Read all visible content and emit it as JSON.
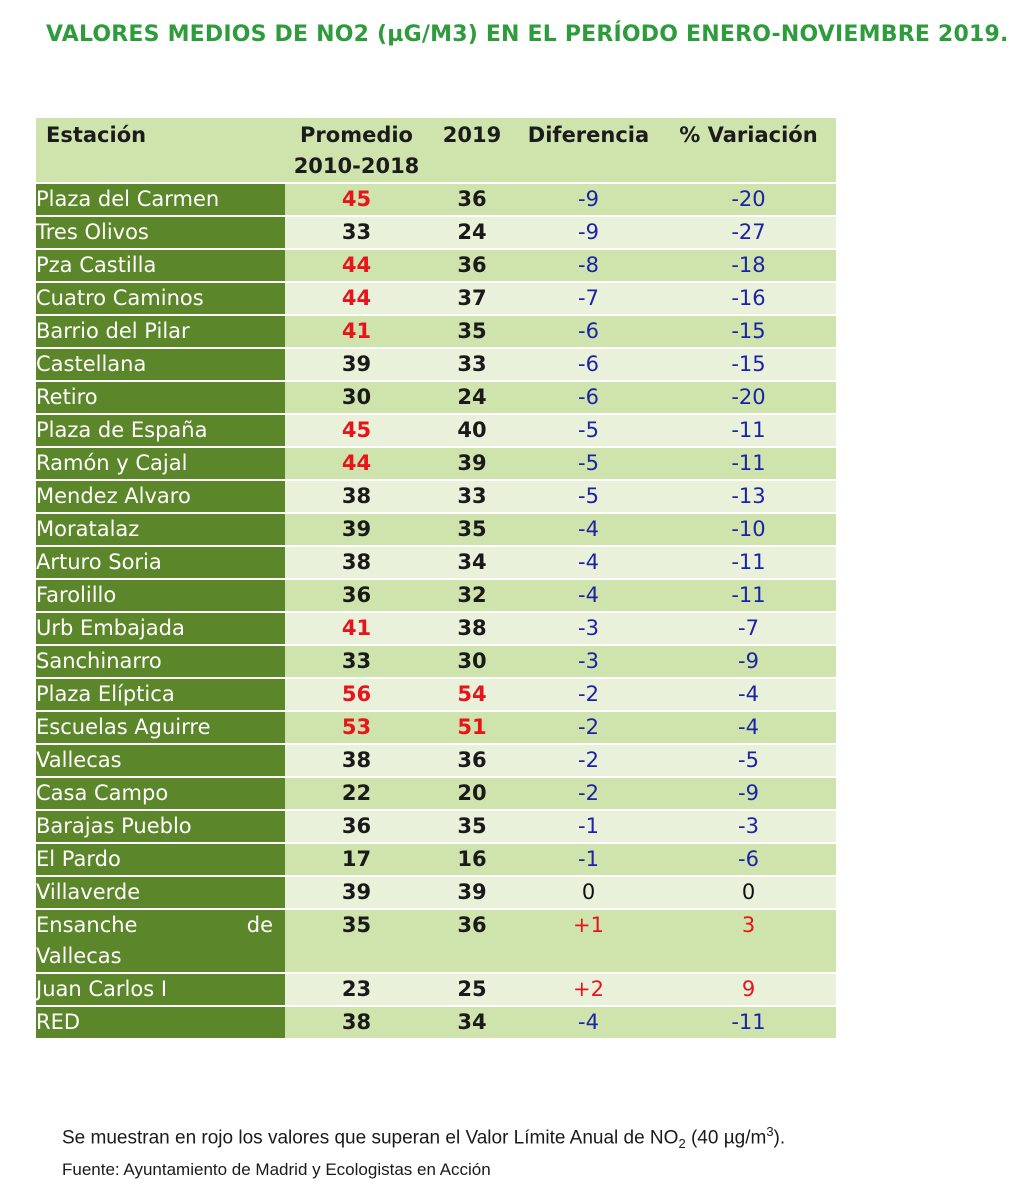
{
  "title": "VALORES MEDIOS DE NO2 (µG/M3) EN EL PERÍODO ENERO-NOVIEMBRE 2019.",
  "headers": {
    "station": "Estación",
    "avg_line1": "Promedio",
    "avg_line2": "2010-2018",
    "year": "2019",
    "diff": "Diferencia",
    "variation": "% Variación"
  },
  "rows": [
    {
      "station": "Plaza del Carmen",
      "avg": "45",
      "y2019": "36",
      "diff": "-9",
      "var": "-20"
    },
    {
      "station": "Tres Olivos",
      "avg": "33",
      "y2019": "24",
      "diff": "-9",
      "var": "-27"
    },
    {
      "station": "Pza Castilla",
      "avg": "44",
      "y2019": "36",
      "diff": "-8",
      "var": "-18"
    },
    {
      "station": "Cuatro Caminos",
      "avg": "44",
      "y2019": "37",
      "diff": "-7",
      "var": "-16"
    },
    {
      "station": "Barrio del Pilar",
      "avg": "41",
      "y2019": "35",
      "diff": "-6",
      "var": "-15"
    },
    {
      "station": "Castellana",
      "avg": "39",
      "y2019": "33",
      "diff": "-6",
      "var": "-15"
    },
    {
      "station": "Retiro",
      "avg": "30",
      "y2019": "24",
      "diff": "-6",
      "var": "-20"
    },
    {
      "station": "Plaza de España",
      "avg": "45",
      "y2019": "40",
      "diff": "-5",
      "var": "-11"
    },
    {
      "station": "Ramón y Cajal",
      "avg": "44",
      "y2019": "39",
      "diff": "-5",
      "var": "-11"
    },
    {
      "station": "Mendez Alvaro",
      "avg": "38",
      "y2019": "33",
      "diff": "-5",
      "var": "-13"
    },
    {
      "station": "Moratalaz",
      "avg": "39",
      "y2019": "35",
      "diff": "-4",
      "var": "-10"
    },
    {
      "station": "Arturo Soria",
      "avg": "38",
      "y2019": "34",
      "diff": "-4",
      "var": "-11"
    },
    {
      "station": "Farolillo",
      "avg": "36",
      "y2019": "32",
      "diff": "-4",
      "var": "-11"
    },
    {
      "station": "Urb Embajada",
      "avg": "41",
      "y2019": "38",
      "diff": "-3",
      "var": "-7"
    },
    {
      "station": "Sanchinarro",
      "avg": "33",
      "y2019": "30",
      "diff": "-3",
      "var": "-9"
    },
    {
      "station": "Plaza Elíptica",
      "avg": "56",
      "y2019": "54",
      "diff": "-2",
      "var": "-4"
    },
    {
      "station": "Escuelas Aguirre",
      "avg": "53",
      "y2019": "51",
      "diff": "-2",
      "var": "-4"
    },
    {
      "station": "Vallecas",
      "avg": "38",
      "y2019": "36",
      "diff": "-2",
      "var": "-5"
    },
    {
      "station": "Casa Campo",
      "avg": "22",
      "y2019": "20",
      "diff": "-2",
      "var": "-9"
    },
    {
      "station": "Barajas Pueblo",
      "avg": "36",
      "y2019": "35",
      "diff": "-1",
      "var": "-3"
    },
    {
      "station": "El Pardo",
      "avg": "17",
      "y2019": "16",
      "diff": "-1",
      "var": "-6"
    },
    {
      "station": "Villaverde",
      "avg": "39",
      "y2019": "39",
      "diff": "0",
      "var": "0"
    },
    {
      "station": "Ensanche de Vallecas",
      "avg": "35",
      "y2019": "36",
      "diff": "+1",
      "var": "3"
    },
    {
      "station": "Juan Carlos I",
      "avg": "23",
      "y2019": "25",
      "diff": "+2",
      "var": "9"
    },
    {
      "station": "RED",
      "avg": "38",
      "y2019": "34",
      "diff": "-4",
      "var": "-11"
    }
  ],
  "note": {
    "prefix": "Se muestran en rojo los valores que superan el Valor Límite Anual de NO",
    "sub": "2",
    "middle": " (40 µg/m",
    "sup": "3",
    "suffix": ")."
  },
  "source": "Fuente: Ayuntamiento de Madrid y Ecologistas en Acción",
  "colors": {
    "title": "#2e9c3c",
    "station_bg": "#5c862a",
    "row_dark": "#cfe3ad",
    "row_light": "#e9f1da",
    "exceed": "#e8141b",
    "change": "#1c22a8"
  },
  "limit_value": 40
}
